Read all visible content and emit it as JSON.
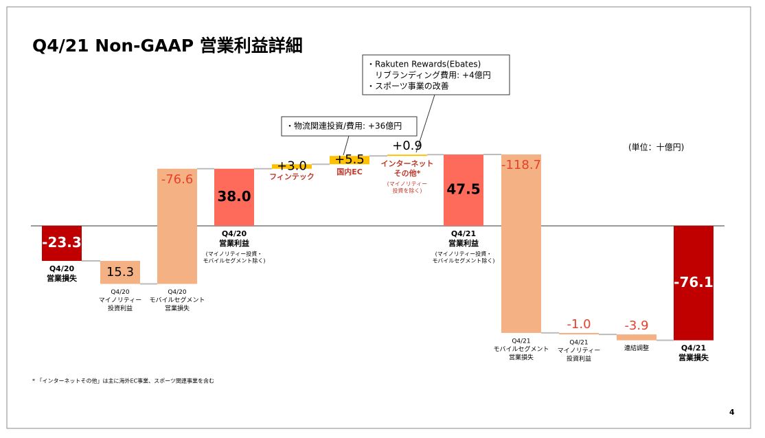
{
  "chart_data": {
    "type": "waterfall",
    "title": "Q4/21 Non-GAAP 営業利益詳細",
    "unit_label": "(単位：十億円)",
    "footnote": "* 「インターネットその他」は主に海外EC事業、スポーツ関連事業を含む",
    "page_number": "4",
    "categories": [
      [
        "Q4/20",
        "営業損失"
      ],
      [
        "Q4/20",
        "マイノリティー",
        "投資利益"
      ],
      [
        "Q4/20",
        "モバイルセグメント",
        "営業損失"
      ],
      [
        "Q4/20",
        "営業利益"
      ],
      [
        "フィンテック"
      ],
      [
        "国内EC"
      ],
      [
        "インターネット",
        "その他*"
      ],
      [
        "Q4/21",
        "営業利益"
      ],
      [
        "Q4/21",
        "モバイルセグメント",
        "営業損失"
      ],
      [
        "Q4/21",
        "マイノリティー",
        "投資利益"
      ],
      [
        "連結調整"
      ],
      [
        "Q4/21",
        "営業損失"
      ]
    ],
    "category_notes": [
      [],
      [],
      [],
      [
        "(マイノリティー投資・",
        "モバイルセグメント除く)"
      ],
      [],
      [],
      [
        "(マイノリティー",
        "投資を除く)"
      ],
      [
        "(マイノリティー投資・",
        "モバイルセグメント除く)"
      ],
      [],
      [],
      [],
      []
    ],
    "values": [
      -23.3,
      15.3,
      -76.6,
      38.0,
      3.0,
      5.5,
      0.9,
      47.5,
      -118.7,
      -1.0,
      -3.9,
      -76.1
    ],
    "value_labels": [
      "-23.3",
      "15.3",
      "-76.6",
      "38.0",
      "+3.0",
      "+5.5",
      "+0.9",
      "47.5",
      "-118.7",
      "-1.0",
      "-3.9",
      "-76.1"
    ],
    "kinds": [
      "total",
      "remove",
      "remove",
      "total",
      "add",
      "add",
      "add",
      "total",
      "add",
      "add",
      "add",
      "total"
    ],
    "colors": [
      "#c00000",
      "#f4b183",
      "#f4b183",
      "#ff6b5b",
      "#ffc000",
      "#ffc000",
      "#ffc000",
      "#ff6b5b",
      "#f4b183",
      "#f4b183",
      "#f4b183",
      "#c00000"
    ],
    "label_colors": [
      "#ffffff",
      "#000000",
      "#e8402a",
      "#000000",
      "#000000",
      "#000000",
      "#000000",
      "#000000",
      "#e8402a",
      "#e8402a",
      "#e8402a",
      "#ffffff"
    ],
    "ylim": [
      -90,
      60
    ],
    "annotations": [
      {
        "lines": [
          "・Rakuten Rewards(Ebates)",
          "リブランディング費用: +4億円",
          "・スポーツ事業の改善"
        ]
      },
      {
        "lines": [
          "・物流関連投資/費用: +36億円"
        ]
      }
    ]
  }
}
